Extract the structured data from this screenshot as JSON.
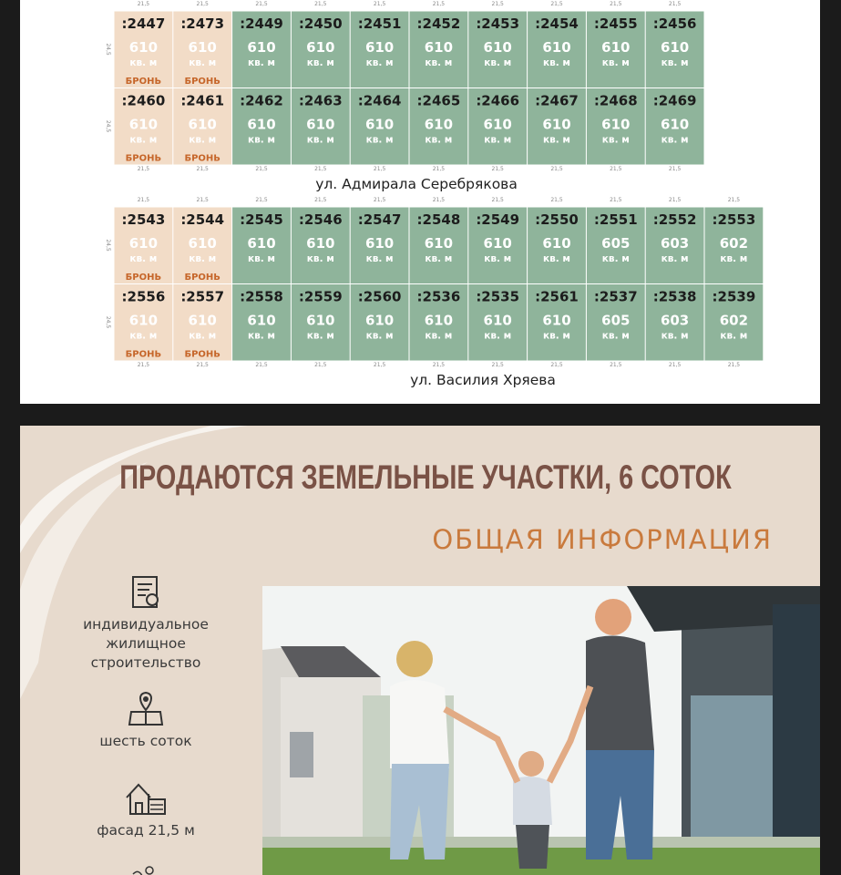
{
  "plan": {
    "width_label": "21,5",
    "depth_label": "24,5",
    "unit": "кв. м",
    "blocks": [
      {
        "street": "ул. Адмирала Серебрякова",
        "rows": [
          [
            {
              "id": ":2447",
              "area": 610,
              "status": "БРОНЬ"
            },
            {
              "id": ":2473",
              "area": 610,
              "status": "БРОНЬ"
            },
            {
              "id": ":2449",
              "area": 610
            },
            {
              "id": ":2450",
              "area": 610
            },
            {
              "id": ":2451",
              "area": 610
            },
            {
              "id": ":2452",
              "area": 610
            },
            {
              "id": ":2453",
              "area": 610
            },
            {
              "id": ":2454",
              "area": 610
            },
            {
              "id": ":2455",
              "area": 610
            },
            {
              "id": ":2456",
              "area": 610
            }
          ],
          [
            {
              "id": ":2460",
              "area": 610,
              "status": "БРОНЬ"
            },
            {
              "id": ":2461",
              "area": 610,
              "status": "БРОНЬ"
            },
            {
              "id": ":2462",
              "area": 610
            },
            {
              "id": ":2463",
              "area": 610
            },
            {
              "id": ":2464",
              "area": 610
            },
            {
              "id": ":2465",
              "area": 610
            },
            {
              "id": ":2466",
              "area": 610
            },
            {
              "id": ":2467",
              "area": 610
            },
            {
              "id": ":2468",
              "area": 610
            },
            {
              "id": ":2469",
              "area": 610
            }
          ]
        ]
      },
      {
        "street": "ул. Василия Хряева",
        "rows": [
          [
            {
              "id": ":2543",
              "area": 610,
              "status": "БРОНЬ"
            },
            {
              "id": ":2544",
              "area": 610,
              "status": "БРОНЬ"
            },
            {
              "id": ":2545",
              "area": 610
            },
            {
              "id": ":2546",
              "area": 610
            },
            {
              "id": ":2547",
              "area": 610
            },
            {
              "id": ":2548",
              "area": 610
            },
            {
              "id": ":2549",
              "area": 610
            },
            {
              "id": ":2550",
              "area": 610
            },
            {
              "id": ":2551",
              "area": 605
            },
            {
              "id": ":2552",
              "area": 603
            },
            {
              "id": ":2553",
              "area": 602
            }
          ],
          [
            {
              "id": ":2556",
              "area": 610,
              "status": "БРОНЬ"
            },
            {
              "id": ":2557",
              "area": 610,
              "status": "БРОНЬ"
            },
            {
              "id": ":2558",
              "area": 610
            },
            {
              "id": ":2559",
              "area": 610
            },
            {
              "id": ":2560",
              "area": 610
            },
            {
              "id": ":2536",
              "area": 610
            },
            {
              "id": ":2535",
              "area": 610
            },
            {
              "id": ":2561",
              "area": 610
            },
            {
              "id": ":2537",
              "area": 605
            },
            {
              "id": ":2538",
              "area": 603
            },
            {
              "id": ":2539",
              "area": 602
            }
          ]
        ]
      }
    ]
  },
  "info": {
    "title": "ПРОДАЮТСЯ ЗЕМЕЛЬНЫЕ УЧАСТКИ, 6 СОТОК",
    "subtitle": "ОБЩАЯ ИНФОРМАЦИЯ",
    "features": [
      {
        "lines": [
          "индивидуальное",
          "жилищное",
          "строительство"
        ]
      },
      {
        "lines": [
          "шесть соток"
        ]
      },
      {
        "lines": [
          "фасад 21,5 м"
        ]
      }
    ]
  }
}
